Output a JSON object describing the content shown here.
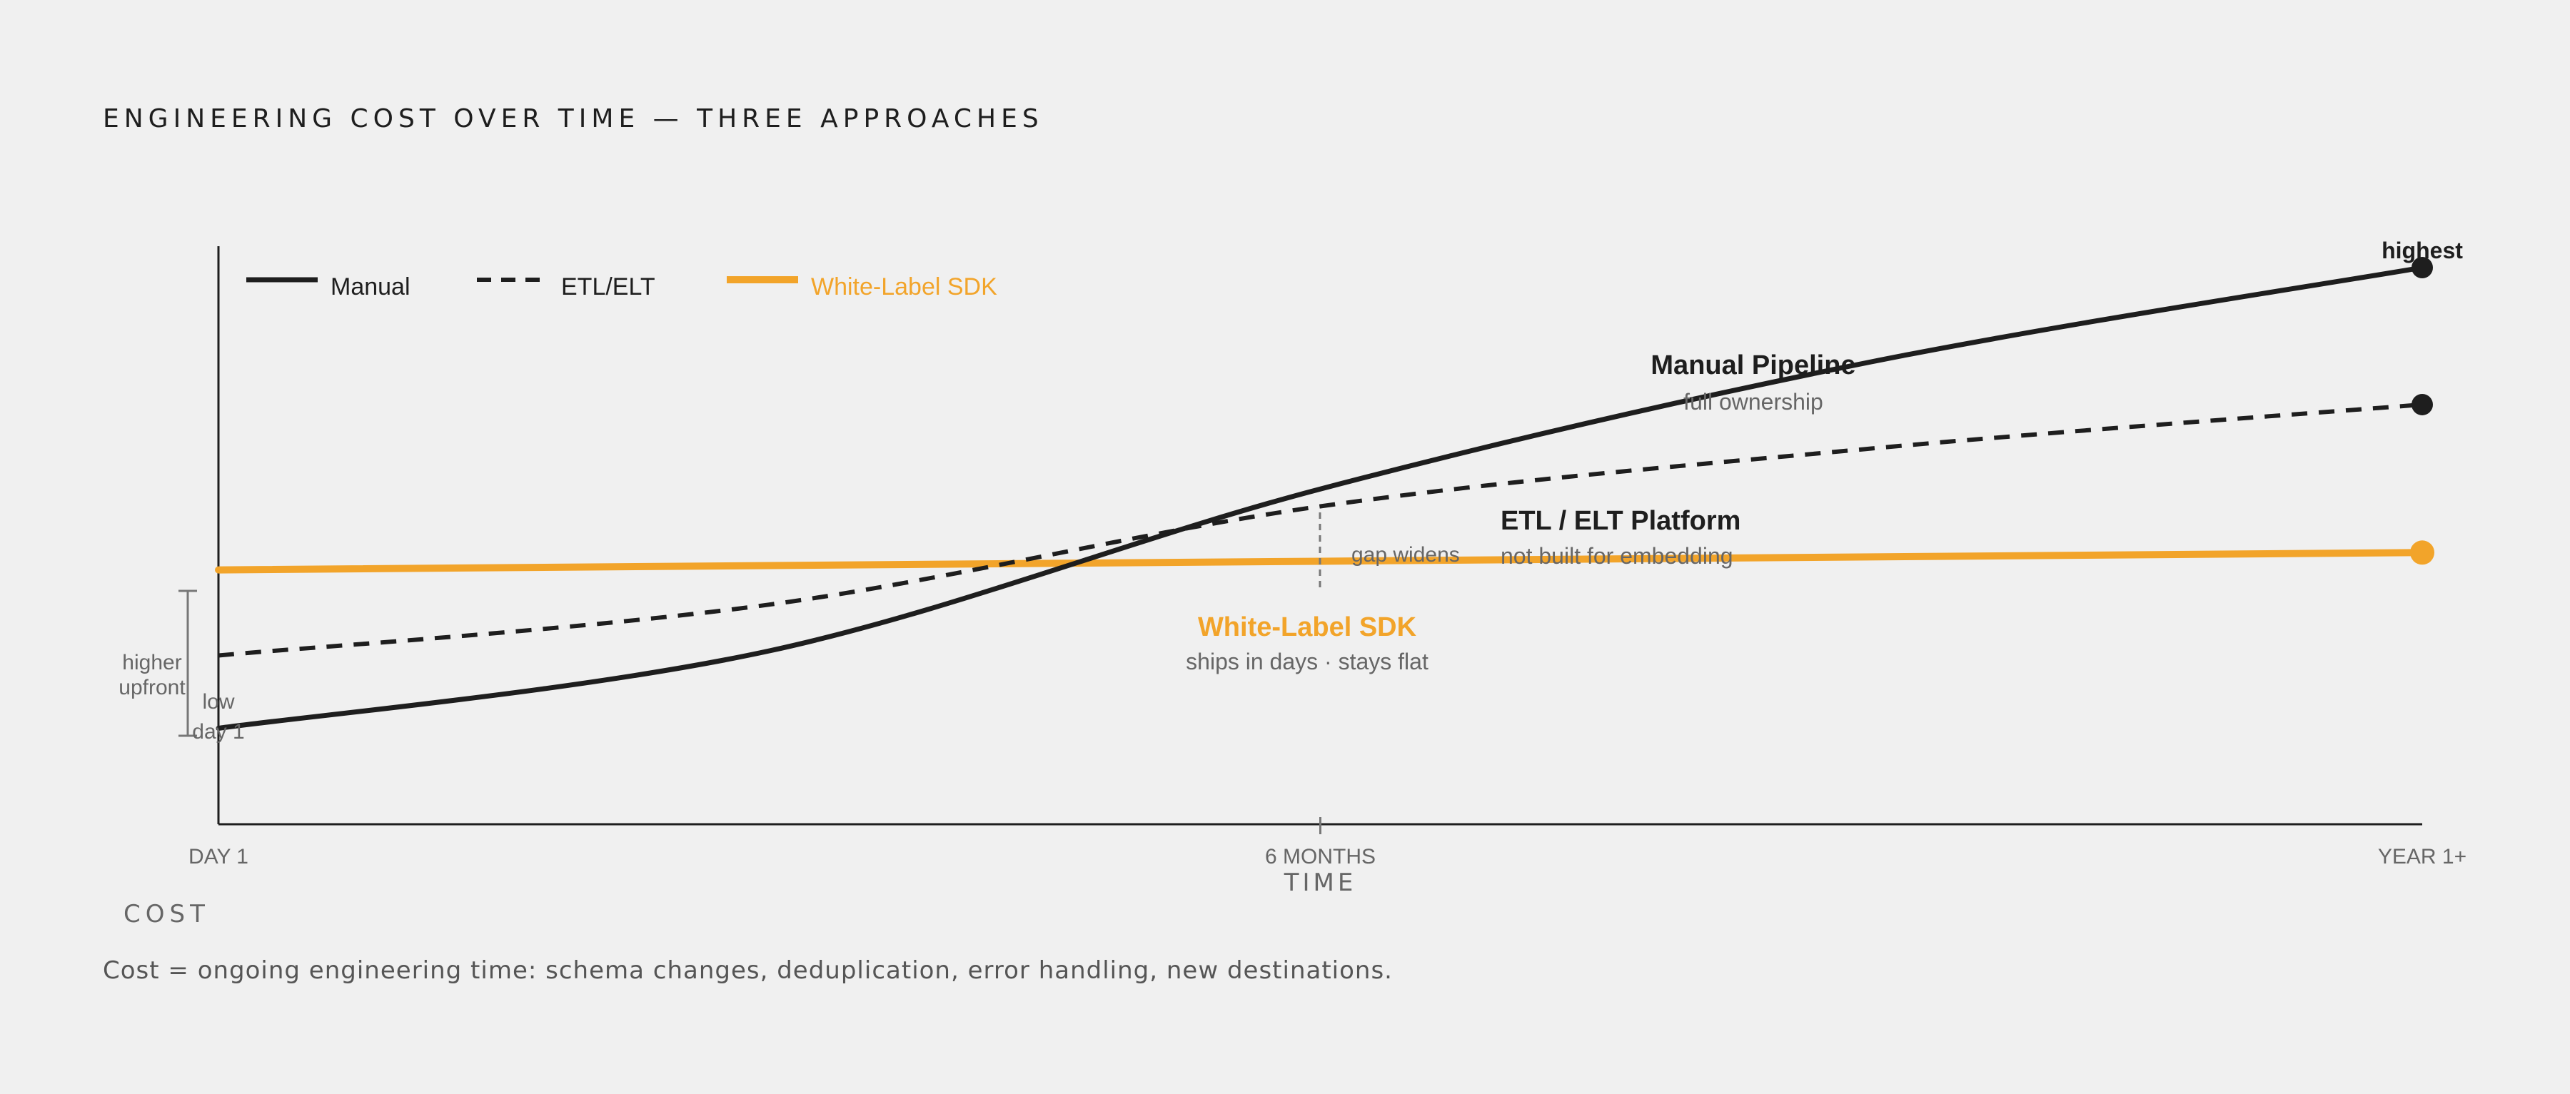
{
  "title": "ENGINEERING COST OVER TIME — THREE APPROACHES",
  "footnote": "Cost = ongoing engineering time: schema changes, deduplication, error handling, new destinations.",
  "colors": {
    "background": "#f0f0f0",
    "ink": "#1e1e1e",
    "accent": "#f2a42a",
    "muted": "#666666",
    "grey": "#777777"
  },
  "chart_data": {
    "type": "line",
    "title": "ENGINEERING COST OVER TIME — THREE APPROACHES",
    "xlabel": "TIME",
    "ylabel": "COST",
    "x_ticks": [
      "DAY 1",
      "6 MONTHS",
      "YEAR 1+"
    ],
    "x_range": [
      0,
      1
    ],
    "y_range": [
      0,
      1
    ],
    "grid": false,
    "legend_position": "top-left",
    "legend": [
      {
        "label": "Manual",
        "style": "solid",
        "color": "#1e1e1e"
      },
      {
        "label": "ETL/ELT",
        "style": "dashed",
        "color": "#1e1e1e"
      },
      {
        "label": "White-Label SDK",
        "style": "solid-thick",
        "color": "#f2a42a"
      }
    ],
    "series": [
      {
        "key": "manual",
        "style": "solid",
        "color": "#1e1e1e",
        "points": [
          [
            0.0,
            0.166
          ],
          [
            0.25,
            0.3
          ],
          [
            0.5,
            0.58
          ],
          [
            0.75,
            0.8
          ],
          [
            1.0,
            0.963
          ]
        ],
        "end_marker": true
      },
      {
        "key": "etl",
        "style": "dashed",
        "color": "#1e1e1e",
        "points": [
          [
            0.0,
            0.292
          ],
          [
            0.25,
            0.38
          ],
          [
            0.5,
            0.55
          ],
          [
            0.75,
            0.65
          ],
          [
            1.0,
            0.726
          ]
        ],
        "end_marker": true
      },
      {
        "key": "sdk",
        "style": "solid-thick",
        "color": "#f2a42a",
        "points": [
          [
            0.0,
            0.44
          ],
          [
            1.0,
            0.47
          ]
        ],
        "end_marker": true
      }
    ],
    "annotations": {
      "manual_title": "Manual Pipeline",
      "manual_sub": "full ownership",
      "etl_title": "ETL / ELT Platform",
      "etl_sub": "not built for embedding",
      "sdk_title": "White-Label SDK",
      "sdk_sub": "ships in days · stays flat",
      "gap": "gap widens",
      "highest": "highest",
      "higher_upfront": [
        "higher",
        "upfront"
      ],
      "low_day1": [
        "low",
        "day 1"
      ]
    }
  }
}
